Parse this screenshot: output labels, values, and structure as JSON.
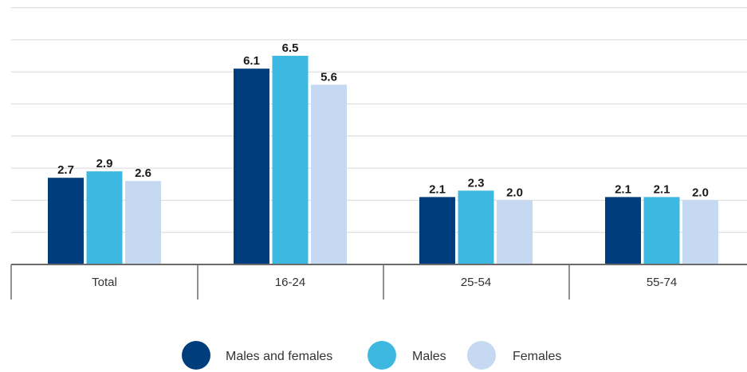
{
  "chart_data": {
    "type": "bar",
    "title": "",
    "xlabel": "",
    "ylabel": "",
    "ylim": [
      0,
      8
    ],
    "grid": true,
    "legend_position": "bottom-center",
    "categories": [
      "Total",
      "16-24",
      "25-54",
      "55-74"
    ],
    "series": [
      {
        "name": "Males and females",
        "color": "#003d7d",
        "values": [
          2.7,
          6.1,
          2.1,
          2.1
        ],
        "labels": [
          "2.7",
          "6.1",
          "2.1",
          "2.1"
        ]
      },
      {
        "name": "Males",
        "color": "#3db8e0",
        "values": [
          2.9,
          6.5,
          2.3,
          2.1
        ],
        "labels": [
          "2.9",
          "6.5",
          "2.3",
          "2.1"
        ]
      },
      {
        "name": "Females",
        "color": "#c5daf2",
        "values": [
          2.6,
          5.6,
          2.0,
          2.0
        ],
        "labels": [
          "2.6",
          "5.6",
          "2.0",
          "2.0"
        ]
      }
    ]
  }
}
